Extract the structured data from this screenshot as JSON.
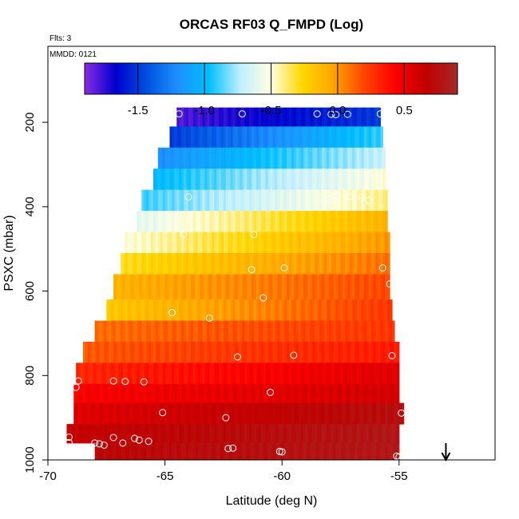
{
  "chart_data": {
    "type": "heatmap",
    "title": "ORCAS RF03 Q_FMPD (Log)",
    "subtitle_left": "Flts: 3",
    "inset_label": "MMDD: 0121",
    "xlabel": "Latitude (deg N)",
    "ylabel": "PSXC (mbar)",
    "xlim": [
      -70,
      -50.9
    ],
    "ylim": [
      1000,
      20
    ],
    "x_ticks": [
      -70,
      -65,
      -60,
      -55
    ],
    "x_tick_labels": [
      "-70",
      "-65",
      "-60",
      "-55"
    ],
    "y_ticks": [
      200,
      400,
      600,
      800,
      1000
    ],
    "y_tick_labels": [
      "200",
      "400",
      "600",
      "800",
      "1000"
    ],
    "colorbar": {
      "range": [
        -1.9,
        0.9
      ],
      "ticks": [
        -1.5,
        -1.0,
        -0.5,
        0.0,
        0.5
      ],
      "tick_labels": [
        "-1.5",
        "-1.0",
        "-0.5",
        "0.0",
        "0.5"
      ],
      "colors": [
        "#8a2be2",
        "#0000cd",
        "#0050e0",
        "#1e90ff",
        "#00bfff",
        "#bfefff",
        "#ffffe0",
        "#ffd700",
        "#ffa500",
        "#ff4500",
        "#ff0000",
        "#c00000",
        "#a52a2a"
      ]
    },
    "bands": [
      {
        "p_top": 165,
        "p_bot": 210,
        "x_start": -64.5,
        "x_end": -55.8,
        "v_start": -1.8,
        "v_end": -1.5
      },
      {
        "p_top": 210,
        "p_bot": 260,
        "x_start": -64.8,
        "x_end": -55.7,
        "v_start": -1.5,
        "v_end": -0.9
      },
      {
        "p_top": 260,
        "p_bot": 310,
        "x_start": -65.3,
        "x_end": -55.6,
        "v_start": -1.2,
        "v_end": -0.7
      },
      {
        "p_top": 310,
        "p_bot": 360,
        "x_start": -65.5,
        "x_end": -55.6,
        "v_start": -1.0,
        "v_end": -0.5
      },
      {
        "p_top": 360,
        "p_bot": 410,
        "x_start": -66.0,
        "x_end": -55.5,
        "v_start": -0.9,
        "v_end": -0.4
      },
      {
        "p_top": 410,
        "p_bot": 460,
        "x_start": -66.2,
        "x_end": -55.5,
        "v_start": -0.6,
        "v_end": -0.1
      },
      {
        "p_top": 460,
        "p_bot": 510,
        "x_start": -66.7,
        "x_end": -55.4,
        "v_start": -0.5,
        "v_end": 0.0
      },
      {
        "p_top": 510,
        "p_bot": 560,
        "x_start": -66.9,
        "x_end": -55.4,
        "v_start": -0.3,
        "v_end": 0.1
      },
      {
        "p_top": 560,
        "p_bot": 620,
        "x_start": -67.2,
        "x_end": -55.4,
        "v_start": -0.1,
        "v_end": 0.2
      },
      {
        "p_top": 620,
        "p_bot": 670,
        "x_start": -67.5,
        "x_end": -55.3,
        "v_start": -0.2,
        "v_end": 0.25
      },
      {
        "p_top": 670,
        "p_bot": 720,
        "x_start": -68.0,
        "x_end": -55.2,
        "v_start": 0.1,
        "v_end": 0.25
      },
      {
        "p_top": 720,
        "p_bot": 770,
        "x_start": -68.5,
        "x_end": -55.0,
        "v_start": 0.15,
        "v_end": 0.35
      },
      {
        "p_top": 770,
        "p_bot": 820,
        "x_start": -68.8,
        "x_end": -55.0,
        "v_start": 0.3,
        "v_end": 0.55
      },
      {
        "p_top": 820,
        "p_bot": 865,
        "x_start": -68.9,
        "x_end": -55.0,
        "v_start": 0.45,
        "v_end": 0.6
      },
      {
        "p_top": 865,
        "p_bot": 915,
        "x_start": -68.9,
        "x_end": -54.8,
        "v_start": 0.55,
        "v_end": 0.75
      },
      {
        "p_top": 915,
        "p_bot": 960,
        "x_start": -69.2,
        "x_end": -55.0,
        "v_start": 0.65,
        "v_end": 0.8
      },
      {
        "p_top": 960,
        "p_bot": 1000,
        "x_start": -68.0,
        "x_end": -55.0,
        "v_start": 0.7,
        "v_end": 0.8
      }
    ],
    "points": [
      {
        "x": -64.4,
        "y": 180
      },
      {
        "x": -61.7,
        "y": 180
      },
      {
        "x": -58.5,
        "y": 180
      },
      {
        "x": -57.9,
        "y": 181
      },
      {
        "x": -57.7,
        "y": 182
      },
      {
        "x": -57.2,
        "y": 181
      },
      {
        "x": -55.8,
        "y": 180
      },
      {
        "x": -56.3,
        "y": 326
      },
      {
        "x": -64.0,
        "y": 377
      },
      {
        "x": -58.0,
        "y": 383
      },
      {
        "x": -57.7,
        "y": 374
      },
      {
        "x": -57.1,
        "y": 376
      },
      {
        "x": -56.6,
        "y": 378
      },
      {
        "x": -56.3,
        "y": 385
      },
      {
        "x": -64.2,
        "y": 465
      },
      {
        "x": -61.2,
        "y": 466
      },
      {
        "x": -59.9,
        "y": 545
      },
      {
        "x": -61.3,
        "y": 549
      },
      {
        "x": -55.7,
        "y": 545
      },
      {
        "x": -55.4,
        "y": 583
      },
      {
        "x": -60.8,
        "y": 616
      },
      {
        "x": -64.7,
        "y": 651
      },
      {
        "x": -63.1,
        "y": 664
      },
      {
        "x": -68.9,
        "y": 737
      },
      {
        "x": -61.9,
        "y": 756
      },
      {
        "x": -59.5,
        "y": 752
      },
      {
        "x": -55.3,
        "y": 753
      },
      {
        "x": -68.7,
        "y": 813
      },
      {
        "x": -67.2,
        "y": 813
      },
      {
        "x": -66.7,
        "y": 814
      },
      {
        "x": -65.9,
        "y": 815
      },
      {
        "x": -68.8,
        "y": 828
      },
      {
        "x": -60.5,
        "y": 840
      },
      {
        "x": -65.1,
        "y": 888
      },
      {
        "x": -62.4,
        "y": 900
      },
      {
        "x": -54.9,
        "y": 889
      },
      {
        "x": -69.1,
        "y": 946
      },
      {
        "x": -69.1,
        "y": 959
      },
      {
        "x": -68.0,
        "y": 960
      },
      {
        "x": -67.8,
        "y": 962
      },
      {
        "x": -67.6,
        "y": 965
      },
      {
        "x": -67.2,
        "y": 947
      },
      {
        "x": -66.8,
        "y": 960
      },
      {
        "x": -66.1,
        "y": 953
      },
      {
        "x": -66.3,
        "y": 949
      },
      {
        "x": -65.7,
        "y": 956
      },
      {
        "x": -62.3,
        "y": 973
      },
      {
        "x": -62.1,
        "y": 972
      },
      {
        "x": -60.1,
        "y": 980
      },
      {
        "x": -60.0,
        "y": 981
      },
      {
        "x": -55.1,
        "y": 991
      },
      {
        "x": -55.0,
        "y": 993
      }
    ],
    "arrow_x": -53.0
  }
}
